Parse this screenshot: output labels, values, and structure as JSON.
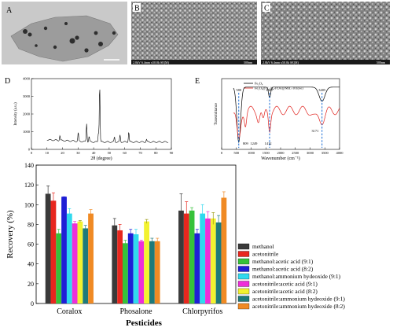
{
  "panel_labels": [
    "A",
    "B",
    "C",
    "D",
    "E"
  ],
  "micrographs": [
    {
      "id": "A",
      "caption": ""
    },
    {
      "id": "B",
      "caption": "2.0kV 6.4mm x50.0k SE(M)",
      "scale": "500nm"
    },
    {
      "id": "C",
      "caption": "2.0kV 6.4mm x50.0k SE(M)",
      "scale": "500nm"
    }
  ],
  "chart_data": [
    {
      "id": "D",
      "type": "line",
      "title": "",
      "xlabel": "2θ (degree)",
      "ylabel": "Intensity (a.u.)",
      "xlim": [
        0,
        90
      ],
      "ylim": [
        0,
        4000
      ],
      "x_ticks": [
        0,
        10,
        20,
        30,
        40,
        50,
        60,
        70,
        80,
        90
      ],
      "y_ticks": [
        0,
        1000,
        2000,
        3000,
        4000
      ],
      "peaks": [
        {
          "x": 18.3,
          "y": 700
        },
        {
          "x": 30.1,
          "y": 900
        },
        {
          "x": 35.5,
          "y": 1450
        },
        {
          "x": 37.1,
          "y": 720
        },
        {
          "x": 43.1,
          "y": 950
        },
        {
          "x": 43.9,
          "y": 3650
        },
        {
          "x": 53.4,
          "y": 700
        },
        {
          "x": 57.0,
          "y": 800
        },
        {
          "x": 62.6,
          "y": 1000
        },
        {
          "x": 74.0,
          "y": 560
        }
      ],
      "baseline": 420
    },
    {
      "id": "E",
      "type": "line",
      "title": "",
      "xlabel": "Wavenumber (cm⁻¹)",
      "ylabel": "Transmittance",
      "xlim": [
        0,
        4000
      ],
      "x_ticks": [
        0,
        500,
        1000,
        1500,
        2000,
        2500,
        3000,
        3500,
        4000
      ],
      "series": [
        {
          "name": "Fe₃O₄",
          "color": "#000000"
        },
        {
          "name": "Fe₃O₄@-C₃N₄-PDA@MIL-101(Fe)",
          "color": "#e0201c"
        }
      ],
      "annotations": [
        {
          "x": 580,
          "text": "580",
          "side": "top"
        },
        {
          "x": 1627,
          "text": "1627",
          "side": "top"
        },
        {
          "x": 3405,
          "text": "3405",
          "side": "top"
        },
        {
          "x": 809,
          "text": "809",
          "side": "bottom"
        },
        {
          "x": 1249,
          "text": "1249",
          "side": "bottom"
        },
        {
          "x": 1412,
          "text": "1412",
          "side": "bottom"
        },
        {
          "x": 3171,
          "text": "3171",
          "side": "bottom"
        }
      ]
    },
    {
      "id": "recovery",
      "type": "bar",
      "title": "",
      "xlabel": "Pesticides",
      "ylabel": "Recovery (%)",
      "ylim": [
        0,
        140
      ],
      "y_ticks": [
        0,
        20,
        40,
        60,
        80,
        100,
        120,
        140
      ],
      "categories": [
        "Coralox",
        "Phosalone",
        "Chlorpyrifos"
      ],
      "legend_position": "right",
      "series": [
        {
          "name": "methanol",
          "color": "#3a3a3a",
          "values": [
            111,
            79,
            94
          ],
          "errors": [
            8,
            7,
            17
          ]
        },
        {
          "name": "acetonitrile",
          "color": "#e8271e",
          "values": [
            104,
            74,
            91
          ],
          "errors": [
            8,
            6,
            12
          ]
        },
        {
          "name": "methanol:acetic acid (9:1)",
          "color": "#36c23a",
          "values": [
            71,
            61,
            94
          ],
          "errors": [
            4,
            3,
            3
          ]
        },
        {
          "name": "methanol:acetic acid (8:2)",
          "color": "#1f1fd6",
          "values": [
            108,
            71,
            71
          ],
          "errors": [
            0,
            4,
            4
          ]
        },
        {
          "name": "methanol:ammonium hydeoxide (9:1)",
          "color": "#30d9ee",
          "values": [
            91,
            70,
            91
          ],
          "errors": [
            5,
            5,
            9
          ]
        },
        {
          "name": "acetonitrile:acetic acid (9:1)",
          "color": "#ee2ed9",
          "values": [
            81,
            63,
            86
          ],
          "errors": [
            2,
            1,
            7
          ]
        },
        {
          "name": "acetonitrile:acetic acid (8:2)",
          "color": "#f2f230",
          "values": [
            83,
            83,
            86
          ],
          "errors": [
            1,
            2,
            6
          ]
        },
        {
          "name": "acetonitrile:ammonium hydeoxide (9:1)",
          "color": "#1e7a7a",
          "values": [
            76,
            63,
            82
          ],
          "errors": [
            3,
            3,
            7
          ]
        },
        {
          "name": "acetonitrile:ammonium hydeoxide (8:2)",
          "color": "#f08a24",
          "values": [
            91,
            63,
            107
          ],
          "errors": [
            4,
            3,
            6
          ]
        }
      ]
    }
  ]
}
